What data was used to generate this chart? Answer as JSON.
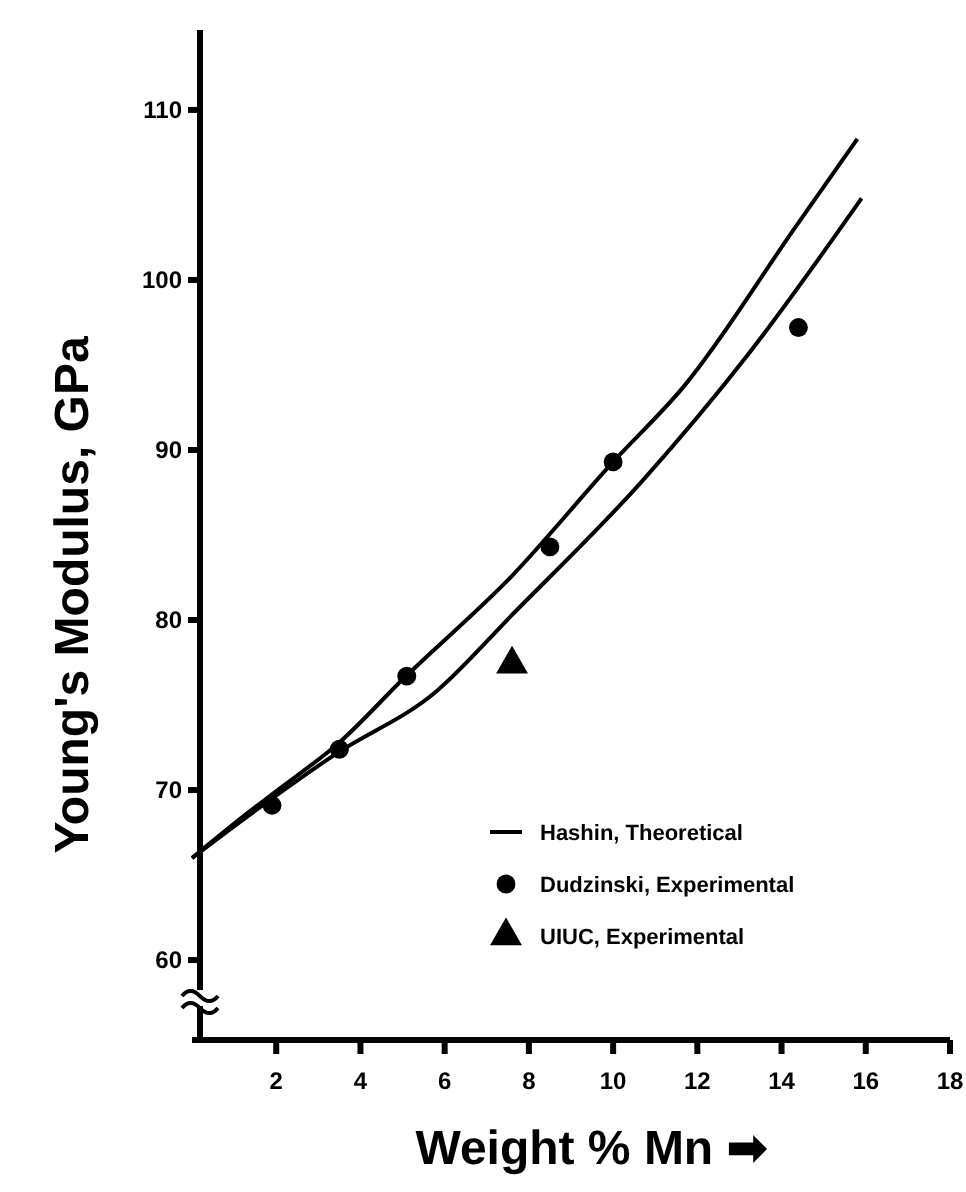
{
  "chart_data": {
    "type": "line",
    "xlabel": "Weight % Mn ➡",
    "ylabel": "Young's Modulus, GPa",
    "xlim": [
      0,
      18
    ],
    "ylim": [
      55.3,
      114.7
    ],
    "xticks": [
      2,
      4,
      6,
      8,
      10,
      12,
      14,
      16,
      18
    ],
    "yticks": [
      60,
      70,
      80,
      90,
      100,
      110
    ],
    "legend": "bottom right",
    "grid": false,
    "series": [
      {
        "name": "Hashin, Theoretical",
        "type": "line",
        "color": "#000000",
        "marker": "none",
        "x": [
          0,
          1.4,
          2.2,
          3.5,
          5.0,
          7.6,
          10.0,
          11.7,
          14.3,
          15.8
        ],
        "values": [
          66,
          68.8,
          70.3,
          72.8,
          76.5,
          82.6,
          89.3,
          93.8,
          103.0,
          108.3
        ]
      },
      {
        "type": "line",
        "color": "#000000",
        "marker": "none",
        "x": [
          0,
          1.4,
          3.4,
          5.8,
          7.6,
          10.7,
          13.2,
          15.9
        ],
        "values": [
          66,
          68.6,
          72.1,
          75.8,
          80.3,
          88.2,
          95.6,
          104.8
        ]
      },
      {
        "name": "Dudzinski, Experimental",
        "type": "scatter",
        "color": "#000000",
        "marker": "circle",
        "x": [
          1.9,
          3.5,
          5.1,
          8.5,
          10.0,
          14.4
        ],
        "values": [
          69.1,
          72.4,
          76.7,
          84.3,
          89.3,
          97.2
        ]
      },
      {
        "name": "UIUC, Experimental",
        "type": "scatter",
        "color": "#000000",
        "marker": "triangle",
        "x": [
          7.6
        ],
        "values": [
          77.4
        ]
      }
    ]
  }
}
